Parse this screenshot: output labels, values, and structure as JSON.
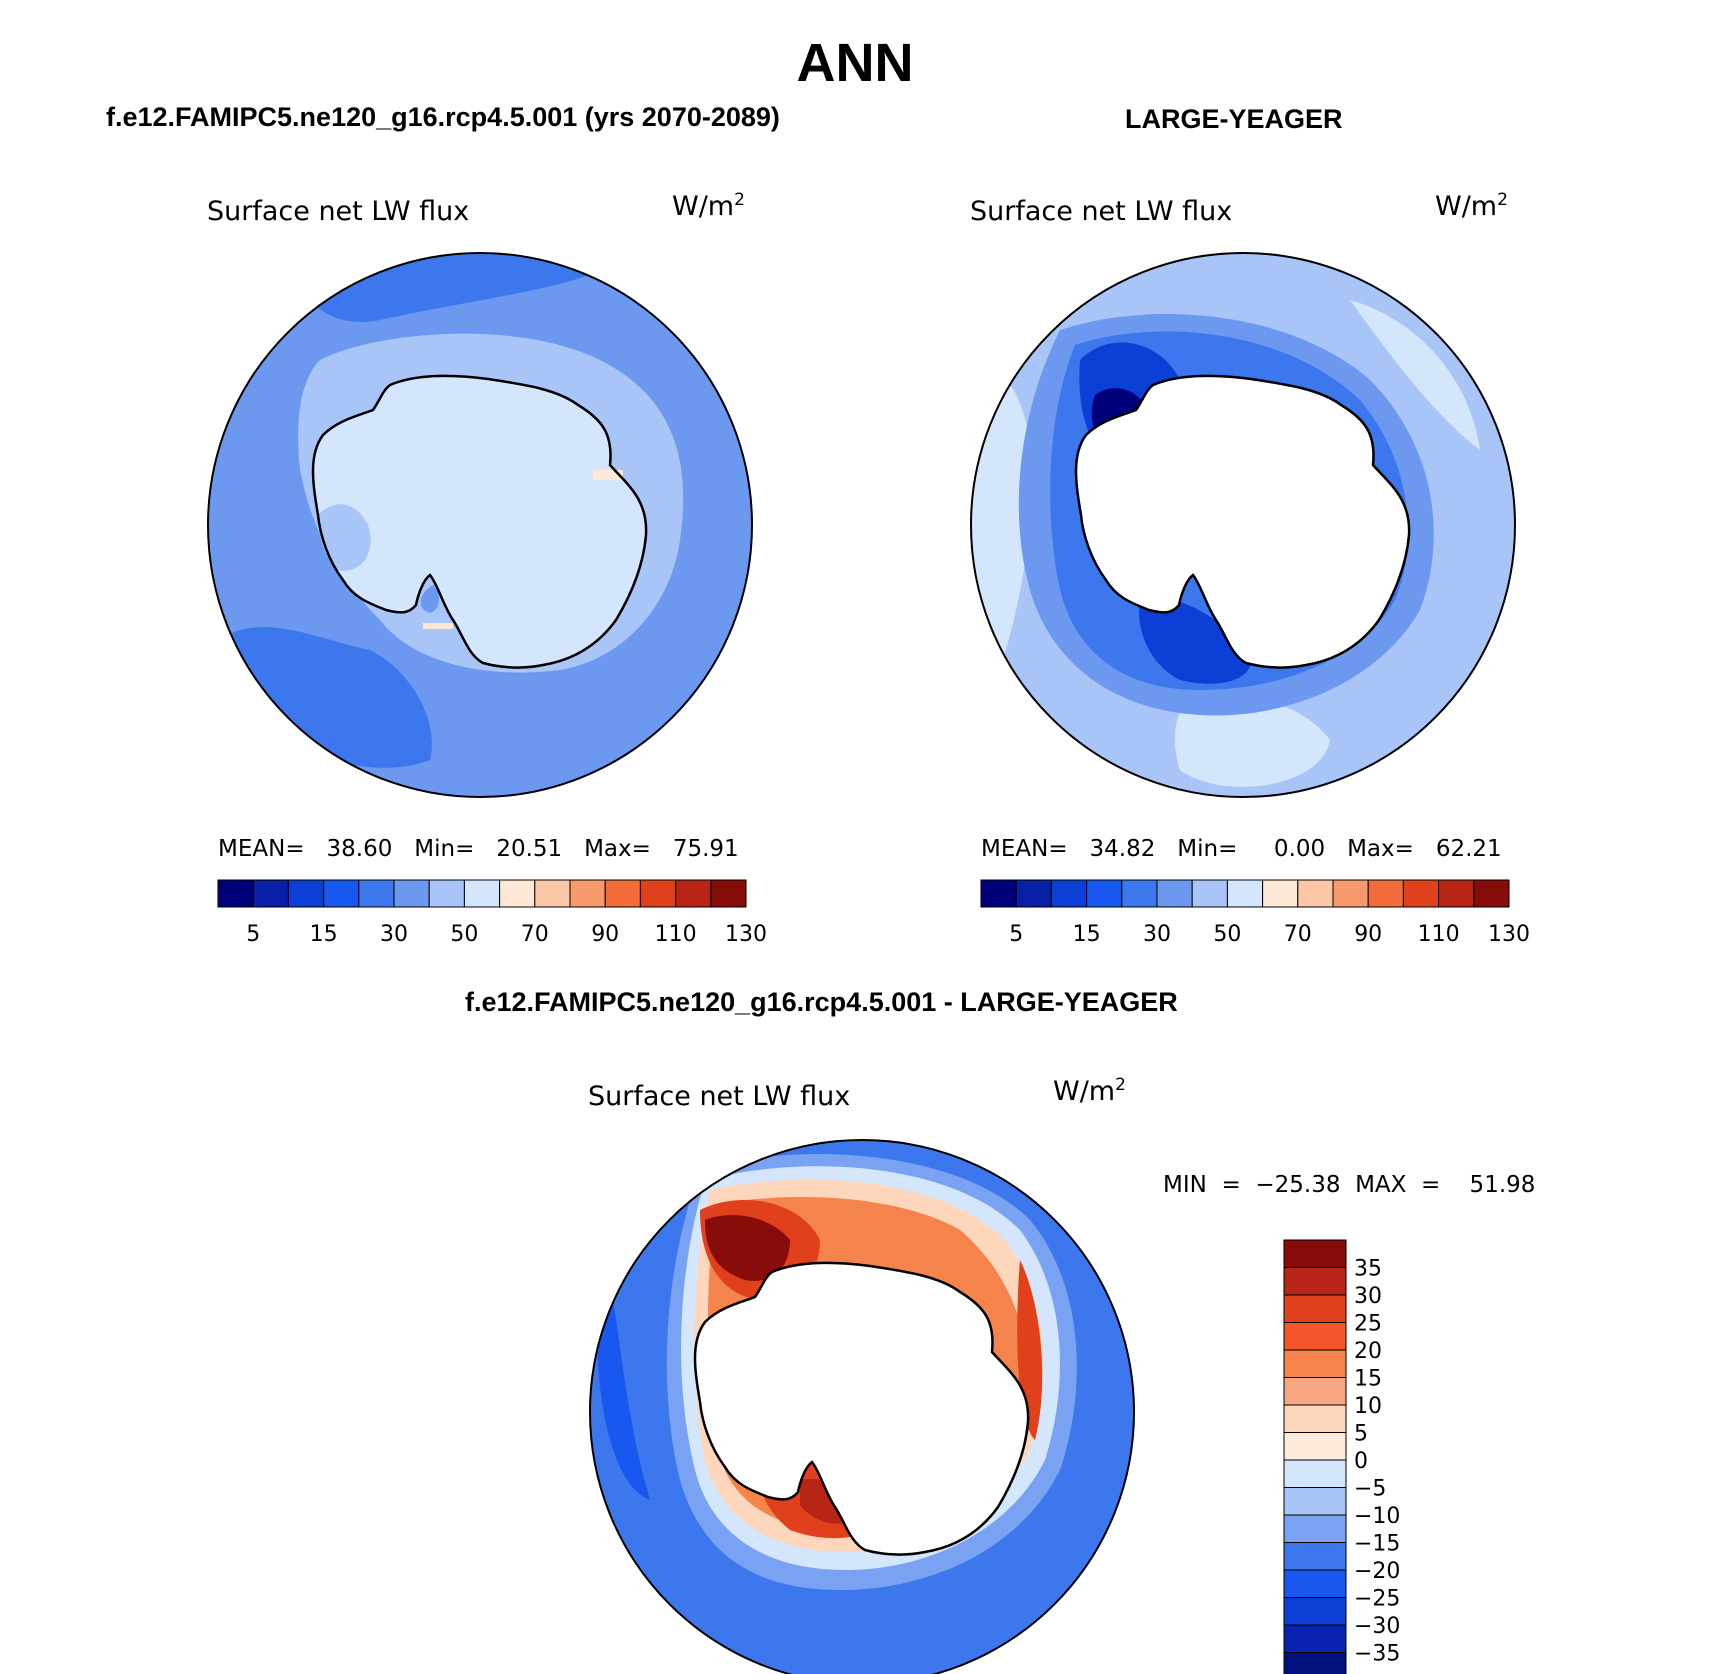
{
  "figure": {
    "season": "ANN",
    "left_case_title": "f.e12.FAMIPC5.ne120_g16.rcp4.5.001 (yrs 2070-2089)",
    "right_case_title": "LARGE-YEAGER",
    "diff_title": "f.e12.FAMIPC5.ne120_g16.rcp4.5.001 - LARGE-YEAGER"
  },
  "panels": {
    "model": {
      "label": "Surface net LW flux",
      "units": "W/m",
      "units_sup": "2",
      "stats": "MEAN=   38.60   Min=   20.51   Max=   75.91"
    },
    "obs": {
      "label": "Surface net LW flux",
      "units": "W/m",
      "units_sup": "2",
      "stats": "MEAN=   34.82   Min=     0.00   Max=   62.21"
    },
    "diff": {
      "label": "Surface net LW flux",
      "units": "W/m",
      "units_sup": "2",
      "stats": "MIN  =  −25.38  MAX  =    51.98"
    }
  },
  "colorbars": {
    "abs": {
      "colors": [
        "#00007a",
        "#0a1fa8",
        "#0b3fd6",
        "#1857f0",
        "#3d77ee",
        "#6d98f0",
        "#a9c4f6",
        "#d4e6fb",
        "#fde7d6",
        "#fcc7a6",
        "#f69a6c",
        "#f36a3b",
        "#e0401c",
        "#b82415",
        "#870c0a"
      ],
      "labels": [
        "5",
        "15",
        "30",
        "50",
        "70",
        "90",
        "110",
        "130"
      ]
    },
    "diff": {
      "colors": [
        "#870c0a",
        "#b82415",
        "#e0401c",
        "#f5552a",
        "#f4844c",
        "#f6a781",
        "#fdd6bb",
        "#fdeadb",
        "#d4e6fb",
        "#a9c4f6",
        "#7aa2f2",
        "#3d77ee",
        "#1857f0",
        "#0b3fd6",
        "#0a22b0",
        "#00107e"
      ],
      "labels": [
        "35",
        "30",
        "25",
        "20",
        "15",
        "10",
        "5",
        "0",
        "−5",
        "−10",
        "−15",
        "−20",
        "−25",
        "−30",
        "−35"
      ]
    }
  }
}
